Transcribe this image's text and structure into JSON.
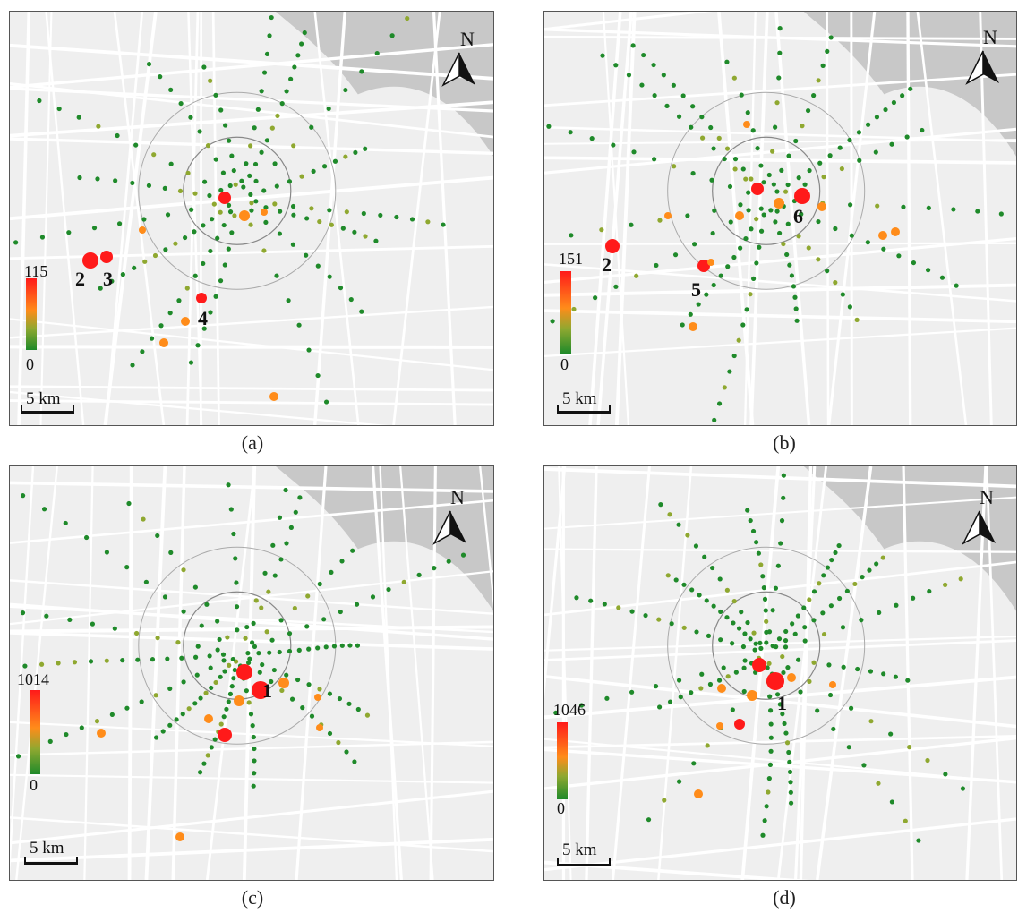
{
  "panels": [
    {
      "id": "a",
      "caption": "(a)",
      "legend": {
        "max": "115",
        "min": "0"
      },
      "north": "N",
      "scale": "5 km",
      "labels": [
        "2",
        "3",
        "4"
      ]
    },
    {
      "id": "b",
      "caption": "(b)",
      "legend": {
        "max": "151",
        "min": "0"
      },
      "north": "N",
      "scale": "5 km",
      "labels": [
        "2",
        "5",
        "6"
      ]
    },
    {
      "id": "c",
      "caption": "(c)",
      "legend": {
        "max": "1014",
        "min": "0"
      },
      "north": "N",
      "scale": "5 km",
      "labels": [
        "1"
      ]
    },
    {
      "id": "d",
      "caption": "(d)",
      "legend": {
        "max": "1046",
        "min": "0"
      },
      "north": "N",
      "scale": "5 km",
      "labels": [
        "1"
      ]
    }
  ],
  "colors": {
    "low": "#1f8a2a",
    "mid": "#ff8c1a",
    "high": "#ff1a1a",
    "river": "#c8c8c8",
    "road": "#ffffff",
    "background": "#efefef"
  }
}
